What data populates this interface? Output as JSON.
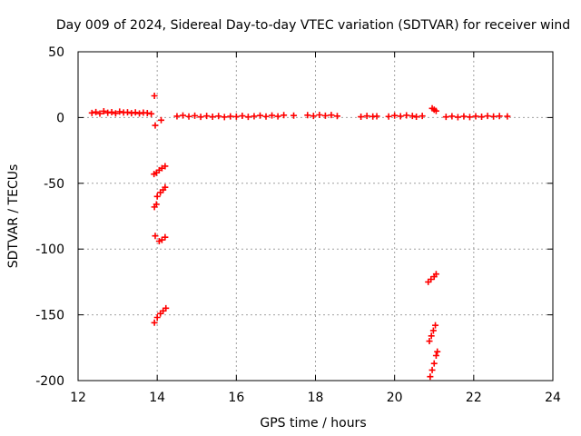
{
  "chart_data": {
    "type": "scatter",
    "title": "Day 009 of 2024, Sidereal Day-to-day VTEC variation (SDTVAR) for receiver wind",
    "xlabel": "GPS time / hours",
    "ylabel": "SDTVAR / TECUs",
    "xlim": [
      12,
      24
    ],
    "ylim": [
      -200,
      50
    ],
    "xticks": [
      12,
      14,
      16,
      18,
      20,
      22,
      24
    ],
    "yticks": [
      50,
      0,
      -50,
      -100,
      -150,
      -200
    ],
    "xtick_labels": [
      "12",
      "14",
      "16",
      "18",
      "20",
      "22",
      "24"
    ],
    "ytick_labels": [
      "50",
      "0",
      "-50",
      "-100",
      "-150",
      "-200"
    ],
    "grid": true,
    "marker": "+",
    "color": "#ff0000",
    "series": [
      {
        "name": "SDTVAR",
        "points": [
          [
            12.35,
            3.5
          ],
          [
            12.45,
            4.2
          ],
          [
            12.55,
            3.0
          ],
          [
            12.65,
            4.8
          ],
          [
            12.75,
            3.6
          ],
          [
            12.85,
            4.1
          ],
          [
            12.95,
            3.2
          ],
          [
            13.05,
            4.5
          ],
          [
            13.15,
            3.8
          ],
          [
            13.25,
            4.0
          ],
          [
            13.35,
            3.3
          ],
          [
            13.45,
            3.9
          ],
          [
            13.55,
            3.1
          ],
          [
            13.65,
            3.7
          ],
          [
            13.75,
            3.4
          ],
          [
            13.85,
            2.8
          ],
          [
            13.93,
            16.5
          ],
          [
            13.95,
            -6.0
          ],
          [
            14.1,
            -2.0
          ],
          [
            13.92,
            -43.0
          ],
          [
            13.98,
            -42.0
          ],
          [
            14.05,
            -40.0
          ],
          [
            14.12,
            -38.5
          ],
          [
            14.2,
            -37.0
          ],
          [
            14.0,
            -60.0
          ],
          [
            14.08,
            -57.0
          ],
          [
            14.15,
            -55.0
          ],
          [
            14.2,
            -53.0
          ],
          [
            13.93,
            -68.0
          ],
          [
            13.98,
            -66.0
          ],
          [
            13.95,
            -90.0
          ],
          [
            14.05,
            -94.0
          ],
          [
            14.12,
            -93.0
          ],
          [
            14.2,
            -91.0
          ],
          [
            13.93,
            -156.0
          ],
          [
            14.0,
            -152.0
          ],
          [
            14.08,
            -149.0
          ],
          [
            14.15,
            -147.0
          ],
          [
            14.22,
            -145.0
          ],
          [
            14.5,
            1.0
          ],
          [
            14.65,
            1.6
          ],
          [
            14.8,
            0.8
          ],
          [
            14.95,
            1.4
          ],
          [
            15.1,
            0.5
          ],
          [
            15.25,
            1.2
          ],
          [
            15.4,
            0.6
          ],
          [
            15.55,
            1.1
          ],
          [
            15.7,
            0.4
          ],
          [
            15.85,
            0.9
          ],
          [
            16.0,
            0.7
          ],
          [
            16.15,
            1.3
          ],
          [
            16.3,
            0.5
          ],
          [
            16.45,
            1.0
          ],
          [
            16.6,
            1.5
          ],
          [
            16.75,
            0.8
          ],
          [
            16.9,
            1.6
          ],
          [
            17.05,
            0.9
          ],
          [
            17.2,
            1.8
          ],
          [
            17.45,
            1.5
          ],
          [
            17.8,
            1.8
          ],
          [
            17.95,
            1.2
          ],
          [
            18.1,
            2.0
          ],
          [
            18.25,
            1.4
          ],
          [
            18.4,
            1.9
          ],
          [
            18.55,
            1.1
          ],
          [
            19.15,
            0.6
          ],
          [
            19.3,
            1.2
          ],
          [
            19.45,
            0.8
          ],
          [
            19.55,
            1.0
          ],
          [
            19.85,
            0.8
          ],
          [
            20.0,
            1.5
          ],
          [
            20.15,
            1.0
          ],
          [
            20.3,
            1.7
          ],
          [
            20.45,
            1.2
          ],
          [
            20.55,
            0.6
          ],
          [
            20.7,
            1.2
          ],
          [
            20.95,
            7.0
          ],
          [
            21.0,
            6.0
          ],
          [
            21.05,
            5.0
          ],
          [
            21.3,
            0.5
          ],
          [
            21.45,
            1.0
          ],
          [
            21.6,
            0.3
          ],
          [
            21.75,
            0.9
          ],
          [
            21.9,
            0.4
          ],
          [
            22.05,
            1.0
          ],
          [
            22.2,
            0.6
          ],
          [
            22.35,
            1.2
          ],
          [
            22.5,
            0.8
          ],
          [
            22.65,
            1.1
          ],
          [
            22.85,
            0.9
          ],
          [
            20.85,
            -125.0
          ],
          [
            20.92,
            -123.0
          ],
          [
            21.0,
            -121.0
          ],
          [
            21.05,
            -119.0
          ],
          [
            20.88,
            -170.0
          ],
          [
            20.93,
            -166.0
          ],
          [
            20.98,
            -162.0
          ],
          [
            21.03,
            -158.0
          ],
          [
            20.9,
            -197.0
          ],
          [
            20.95,
            -192.0
          ],
          [
            21.0,
            -187.0
          ],
          [
            21.05,
            -181.0
          ],
          [
            21.08,
            -178.0
          ]
        ]
      }
    ]
  }
}
